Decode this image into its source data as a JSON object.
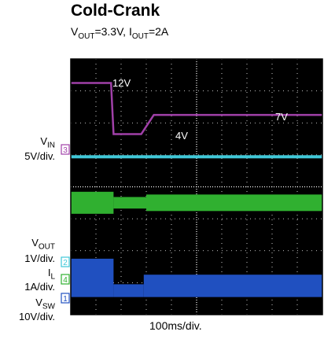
{
  "chart_data": {
    "type": "line",
    "title": "Cold-Crank",
    "subtitle": {
      "vout_prefix": "V",
      "vout_sub": "OUT",
      "vout_value": "=3.3V, ",
      "iout_prefix": "I",
      "iout_sub": "OUT",
      "iout_value": "=2A"
    },
    "xlabel": "100ms/div.",
    "x_divisions": 10,
    "y_divisions": 8,
    "grid": true,
    "background": "#000000",
    "channel_labels": [
      {
        "main": "V",
        "sub": "IN",
        "scale": "5V/div.",
        "marker": "3"
      },
      {
        "main": "V",
        "sub": "OUT",
        "scale": "1V/div.",
        "marker": "2"
      },
      {
        "main": "I",
        "sub": "L",
        "scale": "1A/div.",
        "marker": "4"
      },
      {
        "main": "V",
        "sub": "SW",
        "scale": "10V/div.",
        "marker": "1"
      }
    ],
    "annotations": [
      "12V",
      "4V",
      "7V"
    ],
    "series": [
      {
        "channel": "Vin",
        "color": "#a040a8",
        "unit": "V",
        "volts_per_div": 5,
        "points": [
          [
            0,
            12
          ],
          [
            1.6,
            12
          ],
          [
            1.7,
            4
          ],
          [
            2.8,
            4
          ],
          [
            3.3,
            7
          ],
          [
            10,
            7
          ]
        ]
      },
      {
        "channel": "Vout",
        "color": "#40c8d8",
        "unit": "V",
        "volts_per_div": 1,
        "points": [
          [
            0,
            3.3
          ],
          [
            10,
            3.3
          ]
        ]
      },
      {
        "channel": "IL",
        "color": "#30b030",
        "unit": "A",
        "amps_per_div": 1,
        "segments": [
          [
            0,
            1.7,
            2.0
          ],
          [
            1.7,
            3.0,
            1.05
          ],
          [
            3.0,
            10,
            1.5
          ]
        ]
      },
      {
        "channel": "Vsw",
        "color": "#2050c0",
        "unit": "V",
        "volts_per_div": 10,
        "segments": [
          [
            0,
            1.7,
            12
          ],
          [
            1.7,
            2.9,
            4
          ],
          [
            2.9,
            10,
            7
          ]
        ]
      }
    ],
    "colors": {
      "grid_dots": "#ffffff",
      "frame": "#000000"
    }
  }
}
